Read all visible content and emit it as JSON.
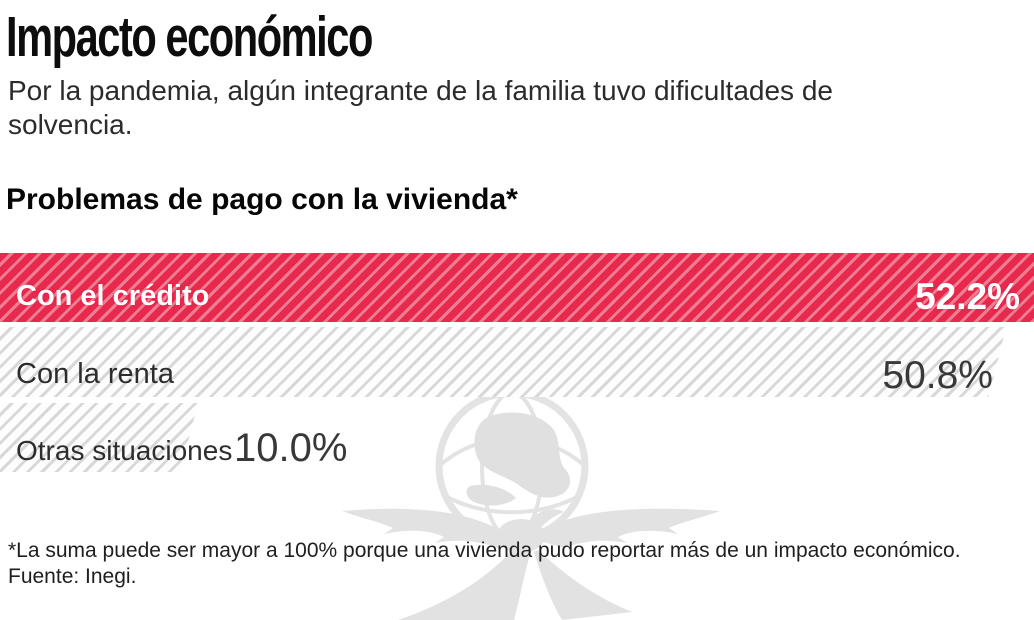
{
  "page": {
    "background": "#ffffff"
  },
  "header": {
    "title": "Impacto económico",
    "subtitle": "Por la pandemia, algún integrante de la familia tuvo dificultades de solvencia."
  },
  "chart": {
    "heading": "Problemas de pago con la vivienda*"
  },
  "chart_data": {
    "type": "bar",
    "orientation": "horizontal",
    "title": "Problemas de pago con la vivienda*",
    "categories": [
      "Con el crédito",
      "Con la renta",
      "Otras situaciones"
    ],
    "values": [
      52.2,
      50.8,
      10.0
    ],
    "value_labels": [
      "52.2%",
      "50.8%",
      "10.0%"
    ],
    "unit": "%",
    "scale_max": 52.2,
    "grid": false,
    "legend": false,
    "axis_labels": false,
    "bar_styles": [
      {
        "fill": "#e7294d",
        "stripe": "#f07e92",
        "label_color": "#ffffff",
        "value_color": "#ffffff"
      },
      {
        "fill": "#fdfdfd",
        "stripe": "#d8d8d8",
        "label_color": "#2d2d2d",
        "value_color": "#383838"
      },
      {
        "fill": "#fdfdfd",
        "stripe": "#d8d8d8",
        "label_color": "#2d2d2d",
        "value_color": "#383838"
      }
    ]
  },
  "footnote": {
    "line1": "*La suma puede ser mayor a 100% porque una vivienda pudo reportar más de un impacto económico.",
    "line2": "Fuente: Inegi."
  },
  "watermark": {
    "icon": "eagle-globe-watermark",
    "color": "#e3e3e3"
  }
}
